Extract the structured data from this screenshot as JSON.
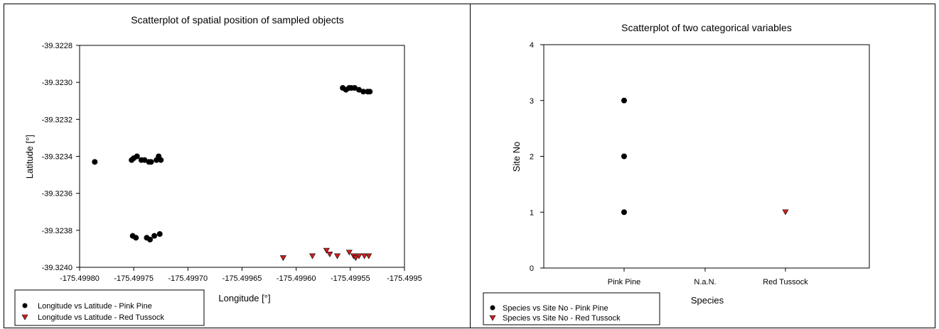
{
  "chart_data": [
    {
      "type": "scatter",
      "title": "Scatterplot of spatial position of sampled objects",
      "xlabel": "Longitude [°]",
      "ylabel": "Latitude [°]",
      "xlim": [
        -175.4998,
        -175.4995
      ],
      "ylim": [
        -39.324,
        -39.3228
      ],
      "xticks": [
        -175.4998,
        -175.49975,
        -175.4997,
        -175.49965,
        -175.4996,
        -175.49955,
        -175.4995
      ],
      "xtick_labels": [
        "-175.49980",
        "-175.49975",
        "-175.49970",
        "-175.49965",
        "-175.49960",
        "-175.49955",
        "-175.4995"
      ],
      "yticks": [
        -39.3228,
        -39.323,
        -39.3232,
        -39.3234,
        -39.3236,
        -39.3238,
        -39.324
      ],
      "ytick_labels": [
        "-39.3228",
        "-39.3230",
        "-39.3232",
        "-39.3234",
        "-39.3236",
        "-39.3238",
        "-39.3240"
      ],
      "grid": false,
      "legend_position": "bottom-left, below plot",
      "series": [
        {
          "name": "Longitude vs Latitude -  Pink Pine",
          "marker": "circle",
          "color": "#000000",
          "points": [
            [
              -175.499786,
              -39.32343
            ],
            [
              -175.499752,
              -39.32342
            ],
            [
              -175.49975,
              -39.32341
            ],
            [
              -175.499747,
              -39.3234
            ],
            [
              -175.499743,
              -39.32342
            ],
            [
              -175.49974,
              -39.32342
            ],
            [
              -175.499736,
              -39.32343
            ],
            [
              -175.499734,
              -39.32343
            ],
            [
              -175.499729,
              -39.32342
            ],
            [
              -175.499727,
              -39.3234
            ],
            [
              -175.499725,
              -39.32342
            ],
            [
              -175.499751,
              -39.32383
            ],
            [
              -175.499748,
              -39.32384
            ],
            [
              -175.499738,
              -39.32384
            ],
            [
              -175.499735,
              -39.32385
            ],
            [
              -175.499731,
              -39.32383
            ],
            [
              -175.499726,
              -39.32382
            ],
            [
              -175.499557,
              -39.32303
            ],
            [
              -175.499554,
              -39.32304
            ],
            [
              -175.499551,
              -39.32303
            ],
            [
              -175.499549,
              -39.32303
            ],
            [
              -175.499546,
              -39.32303
            ],
            [
              -175.499542,
              -39.32304
            ],
            [
              -175.499538,
              -39.32305
            ],
            [
              -175.499534,
              -39.32305
            ],
            [
              -175.499532,
              -39.32305
            ]
          ]
        },
        {
          "name": "Longitude vs Latitude -  Red Tussock",
          "marker": "triangle-down",
          "color": "#cc1f1f",
          "points": [
            [
              -175.499612,
              -39.32395
            ],
            [
              -175.499585,
              -39.32394
            ],
            [
              -175.499572,
              -39.32391
            ],
            [
              -175.499569,
              -39.32393
            ],
            [
              -175.499562,
              -39.32394
            ],
            [
              -175.499551,
              -39.32392
            ],
            [
              -175.499547,
              -39.32394
            ],
            [
              -175.499545,
              -39.32395
            ],
            [
              -175.499542,
              -39.32394
            ],
            [
              -175.499537,
              -39.32394
            ],
            [
              -175.499533,
              -39.32394
            ]
          ]
        }
      ]
    },
    {
      "type": "scatter",
      "title": "Scatterplot of two categorical variables",
      "xlabel": "Species",
      "ylabel": "Site No",
      "categories": [
        "Pink Pine",
        "N.a.N.",
        "Red Tussock"
      ],
      "ylim": [
        0,
        4
      ],
      "yticks": [
        0,
        1,
        2,
        3,
        4
      ],
      "grid": false,
      "legend_position": "bottom-left, below plot",
      "series": [
        {
          "name": "Species vs Site No - Pink Pine",
          "marker": "circle",
          "color": "#000000",
          "points": [
            [
              "Pink Pine",
              1
            ],
            [
              "Pink Pine",
              2
            ],
            [
              "Pink Pine",
              3
            ]
          ]
        },
        {
          "name": "Species vs Site No - Red Tussock",
          "marker": "triangle-down",
          "color": "#cc1f1f",
          "points": [
            [
              "Red Tussock",
              1
            ]
          ]
        }
      ]
    }
  ]
}
